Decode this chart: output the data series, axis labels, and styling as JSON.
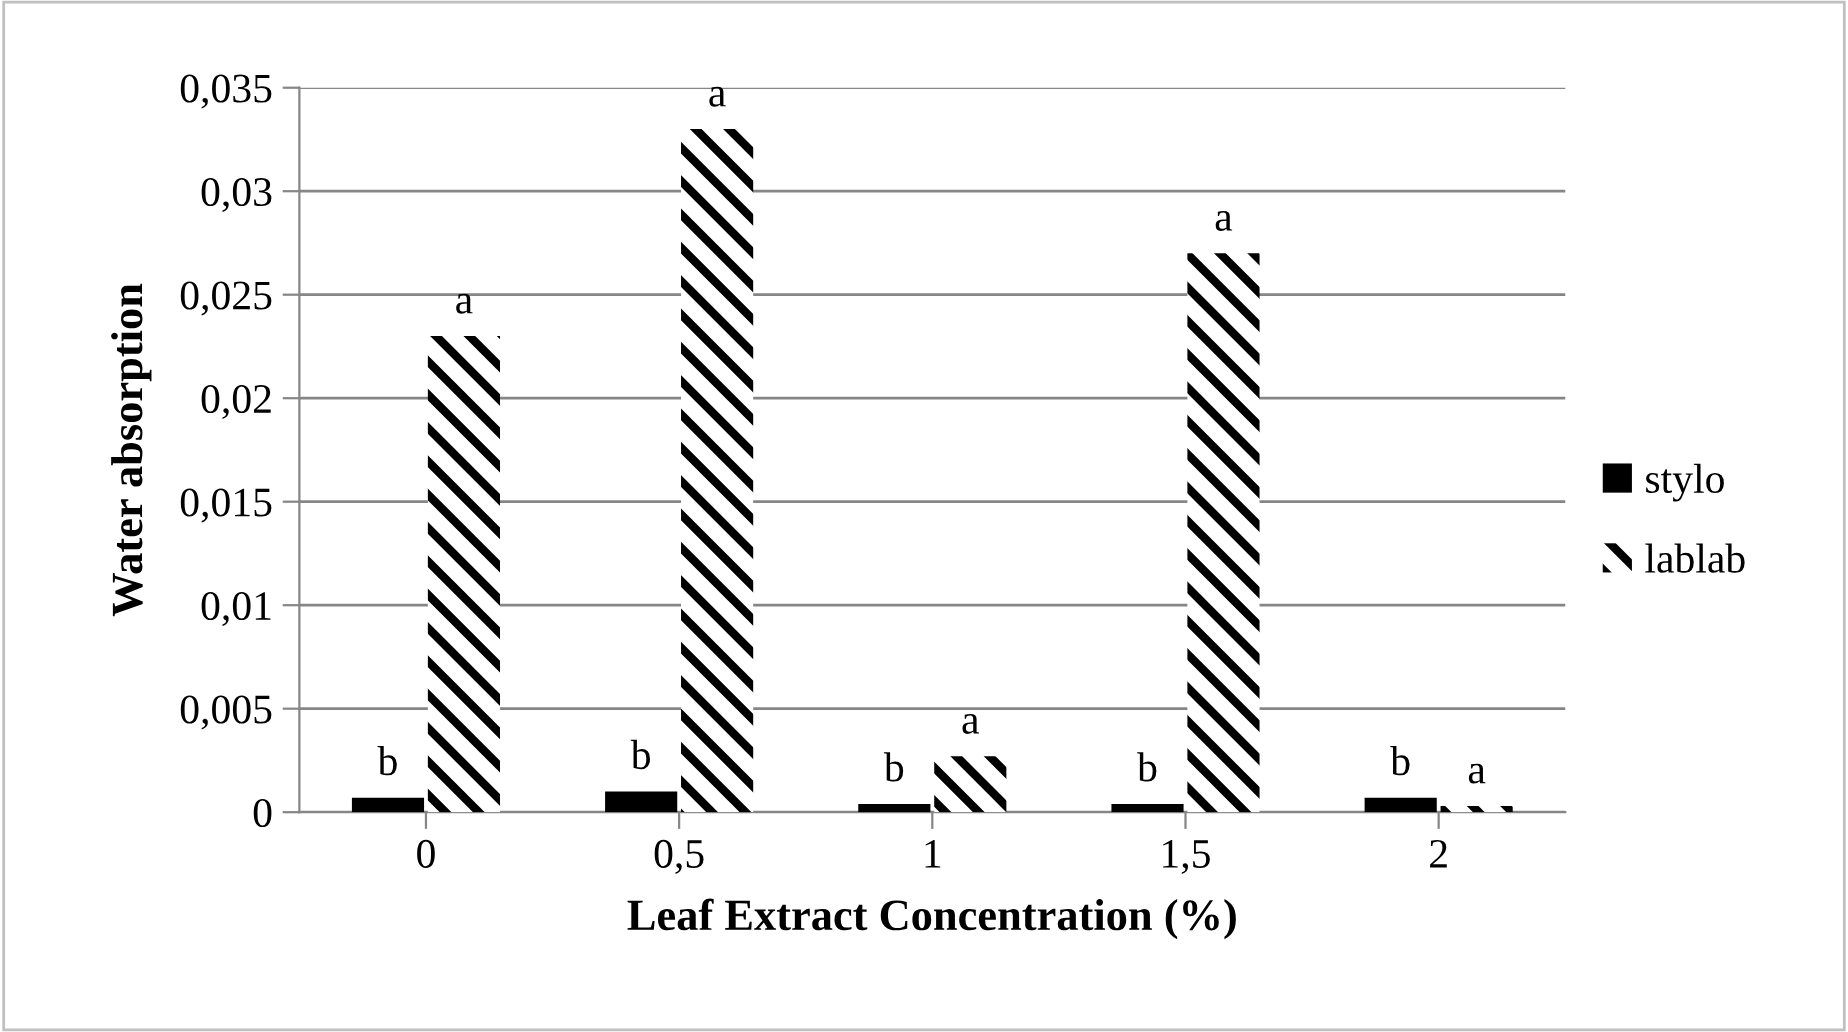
{
  "chart_data": {
    "type": "bar",
    "xlabel": "Leaf Extract Concentration (%)",
    "ylabel": "Water absorption",
    "categories": [
      "0",
      "0,5",
      "1",
      "1,5",
      "2"
    ],
    "series": [
      {
        "name": "stylo",
        "color": "#000000",
        "values": [
          0.0007,
          0.001,
          0.0004,
          0.0004,
          0.0007
        ]
      },
      {
        "name": "lablab",
        "color": "#000000",
        "values": [
          0.023,
          0.033,
          0.0027,
          0.027,
          0.0003
        ]
      }
    ],
    "ylim": [
      0,
      0.035
    ],
    "yticks": [
      0,
      {
        "value": 0.005,
        "label": "0,005"
      },
      {
        "value": 0.01,
        "label": "0,01"
      },
      {
        "value": 0.015,
        "label": "0,015"
      },
      {
        "value": 0.02,
        "label": "0,02"
      },
      {
        "value": 0.025,
        "label": "0,025"
      },
      {
        "value": 0.03,
        "label": "0,03"
      },
      {
        "value": 0.035,
        "label": "0,035"
      }
    ],
    "grid": "y",
    "legend": "right",
    "annotations": [
      {
        "text": "b",
        "x": "0",
        "y": 0.0007
      },
      {
        "text": "a",
        "x": "0",
        "y": 0.023
      },
      {
        "text": "b",
        "x": "0,5",
        "y": 0.001
      },
      {
        "text": "a",
        "x": "0,5",
        "y": 0.033
      },
      {
        "text": "b",
        "x": "1",
        "y": 0.0004
      },
      {
        "text": "a",
        "x": "1",
        "y": 0.0027
      },
      {
        "text": "b",
        "x": "1,5",
        "y": 0.0004
      },
      {
        "text": "a",
        "x": "1,5",
        "y": 0.027
      },
      {
        "text": "b",
        "x": "2",
        "y": 0.0007
      },
      {
        "text": "a",
        "x": "2",
        "y": 0.0003
      }
    ]
  }
}
